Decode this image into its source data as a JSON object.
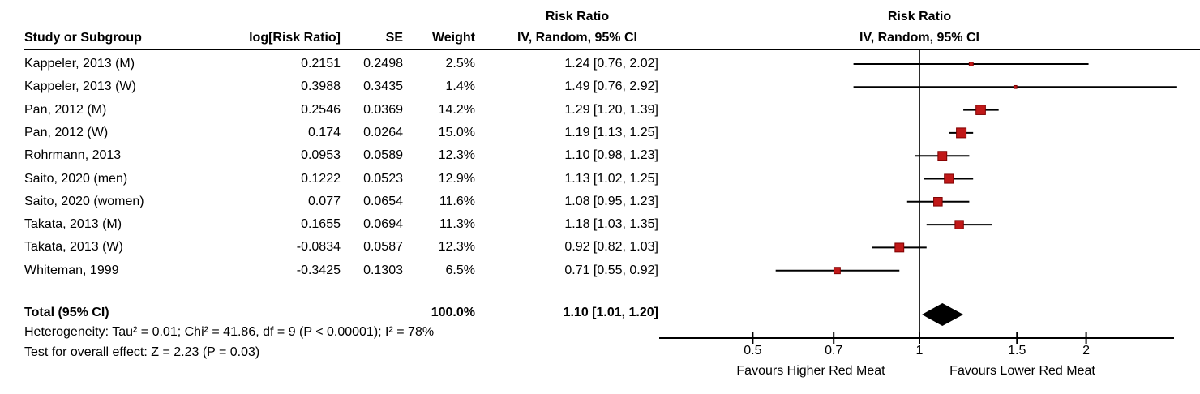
{
  "table": {
    "headers": {
      "risk_ratio_title": "Risk Ratio",
      "study": "Study or Subgroup",
      "log_rr": "log[Risk Ratio]",
      "se": "SE",
      "weight": "Weight",
      "ci": "IV, Random, 95% CI"
    },
    "studies": [
      {
        "name": "Kappeler, 2013 (M)",
        "log_rr": "0.2151",
        "se": "0.2498",
        "weight": "2.5%",
        "ci": "1.24 [0.76, 2.02]"
      },
      {
        "name": "Kappeler, 2013 (W)",
        "log_rr": "0.3988",
        "se": "0.3435",
        "weight": "1.4%",
        "ci": "1.49 [0.76, 2.92]"
      },
      {
        "name": "Pan, 2012 (M)",
        "log_rr": "0.2546",
        "se": "0.0369",
        "weight": "14.2%",
        "ci": "1.29 [1.20, 1.39]"
      },
      {
        "name": "Pan, 2012 (W)",
        "log_rr": "0.174",
        "se": "0.0264",
        "weight": "15.0%",
        "ci": "1.19 [1.13, 1.25]"
      },
      {
        "name": "Rohrmann, 2013",
        "log_rr": "0.0953",
        "se": "0.0589",
        "weight": "12.3%",
        "ci": "1.10 [0.98, 1.23]"
      },
      {
        "name": "Saito, 2020 (men)",
        "log_rr": "0.1222",
        "se": "0.0523",
        "weight": "12.9%",
        "ci": "1.13 [1.02, 1.25]"
      },
      {
        "name": "Saito, 2020 (women)",
        "log_rr": "0.077",
        "se": "0.0654",
        "weight": "11.6%",
        "ci": "1.08 [0.95, 1.23]"
      },
      {
        "name": "Takata, 2013 (M)",
        "log_rr": "0.1655",
        "se": "0.0694",
        "weight": "11.3%",
        "ci": "1.18 [1.03, 1.35]"
      },
      {
        "name": "Takata, 2013 (W)",
        "log_rr": "-0.0834",
        "se": "0.0587",
        "weight": "12.3%",
        "ci": "0.92 [0.82, 1.03]"
      },
      {
        "name": "Whiteman, 1999",
        "log_rr": "-0.3425",
        "se": "0.1303",
        "weight": "6.5%",
        "ci": "0.71 [0.55, 0.92]"
      }
    ],
    "total": {
      "label": "Total (95% CI)",
      "weight": "100.0%",
      "ci": "1.10 [1.01, 1.20]"
    },
    "heterogeneity": "Heterogeneity: Tau² = 0.01; Chi² = 41.86, df = 9 (P < 0.00001); I² = 78%",
    "overall_effect": "Test for overall effect: Z = 2.23 (P = 0.03)"
  },
  "plot": {
    "title": "Risk Ratio",
    "subtitle": "IV, Random, 95% CI"
  },
  "chart_data": {
    "type": "forest",
    "x_scale": "log",
    "x_ticks": [
      "0.5",
      "0.7",
      "1",
      "1.5",
      "2"
    ],
    "x_range": [
      0.34,
      2.9
    ],
    "studies": [
      {
        "name": "Kappeler, 2013 (M)",
        "rr": 1.24,
        "ci_low": 0.76,
        "ci_high": 2.02,
        "weight_pct": 2.5
      },
      {
        "name": "Kappeler, 2013 (W)",
        "rr": 1.49,
        "ci_low": 0.76,
        "ci_high": 2.92,
        "weight_pct": 1.4
      },
      {
        "name": "Pan, 2012 (M)",
        "rr": 1.29,
        "ci_low": 1.2,
        "ci_high": 1.39,
        "weight_pct": 14.2
      },
      {
        "name": "Pan, 2012 (W)",
        "rr": 1.19,
        "ci_low": 1.13,
        "ci_high": 1.25,
        "weight_pct": 15.0
      },
      {
        "name": "Rohrmann, 2013",
        "rr": 1.1,
        "ci_low": 0.98,
        "ci_high": 1.23,
        "weight_pct": 12.3
      },
      {
        "name": "Saito, 2020 (men)",
        "rr": 1.13,
        "ci_low": 1.02,
        "ci_high": 1.25,
        "weight_pct": 12.9
      },
      {
        "name": "Saito, 2020 (women)",
        "rr": 1.08,
        "ci_low": 0.95,
        "ci_high": 1.23,
        "weight_pct": 11.6
      },
      {
        "name": "Takata, 2013 (M)",
        "rr": 1.18,
        "ci_low": 1.03,
        "ci_high": 1.35,
        "weight_pct": 11.3
      },
      {
        "name": "Takata, 2013 (W)",
        "rr": 0.92,
        "ci_low": 0.82,
        "ci_high": 1.03,
        "weight_pct": 12.3
      },
      {
        "name": "Whiteman, 1999",
        "rr": 0.71,
        "ci_low": 0.55,
        "ci_high": 0.92,
        "weight_pct": 6.5
      }
    ],
    "total": {
      "rr": 1.1,
      "ci_low": 1.01,
      "ci_high": 1.2
    },
    "x_axis_labels": {
      "left": "Favours Higher Red Meat",
      "right": "Favours Lower Red Meat"
    },
    "marker_color": "#c01818",
    "marker_border_color": "#7f0000",
    "line_color": "#000000",
    "diamond_color": "#000000"
  }
}
